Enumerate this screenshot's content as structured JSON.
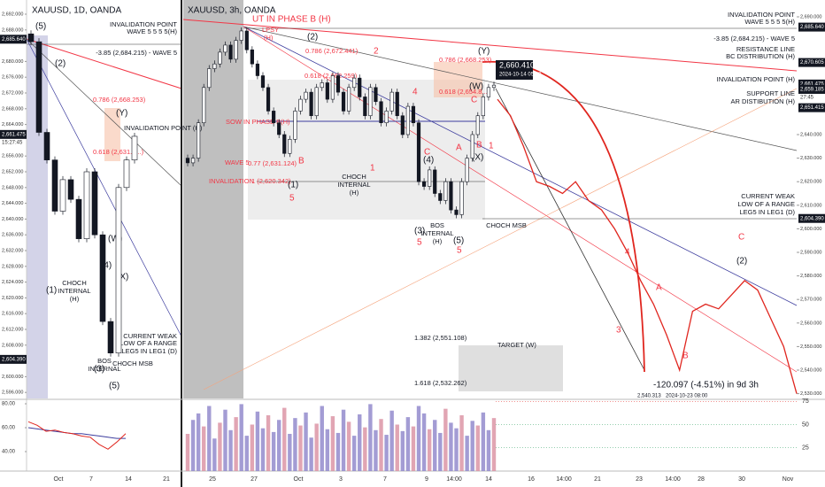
{
  "left": {
    "symbol": "XAUUSD, 1D, OANDA",
    "ticks": [
      {
        "value": 2692,
        "label": "2,692.000"
      },
      {
        "value": 2688,
        "label": "2,688.000"
      },
      {
        "value": 2680,
        "label": "2,680.000"
      },
      {
        "value": 2676,
        "label": "2,676.000"
      },
      {
        "value": 2672,
        "label": "2,672.000"
      },
      {
        "value": 2668,
        "label": "2,668.000"
      },
      {
        "value": 2664,
        "label": "2,664.000"
      },
      {
        "value": 2656,
        "label": "2,656.000"
      },
      {
        "value": 2652,
        "label": "2,652.000"
      },
      {
        "value": 2648,
        "label": "2,648.000"
      },
      {
        "value": 2644,
        "label": "2,644.000"
      },
      {
        "value": 2640,
        "label": "2,640.000"
      },
      {
        "value": 2636,
        "label": "2,636.000"
      },
      {
        "value": 2632,
        "label": "2,632.000"
      },
      {
        "value": 2628,
        "label": "2,628.000"
      },
      {
        "value": 2624,
        "label": "2,624.000"
      },
      {
        "value": 2620,
        "label": "2,620.000"
      },
      {
        "value": 2616,
        "label": "2,616.000"
      },
      {
        "value": 2612,
        "label": "2,612.000"
      },
      {
        "value": 2608,
        "label": "2,608.000"
      },
      {
        "value": 2600,
        "label": "2,600.000"
      },
      {
        "value": 2596,
        "label": "2,596.000"
      }
    ],
    "badges": [
      {
        "value": 2685.64,
        "label": "2,685.640"
      },
      {
        "value": 2661.475,
        "label": "2,661.475"
      },
      {
        "value": 2604.39,
        "label": "2,604.390"
      }
    ],
    "countdown": "15:27:45",
    "closes": [
      2685,
      2662,
      2655,
      2642,
      2650,
      2645,
      2635,
      2652,
      2636,
      2614,
      2606,
      2648,
      2655,
      2661
    ],
    "rsi_ticks": [
      {
        "value": 80,
        "label": "80.00"
      },
      {
        "value": 60,
        "label": "60.00"
      },
      {
        "value": 40,
        "label": "40.00"
      }
    ],
    "rsi": [
      65,
      62,
      57,
      58,
      56,
      55,
      53,
      52,
      46,
      42,
      48,
      55
    ],
    "rsi_ma": [
      60,
      59,
      58,
      57,
      56,
      55,
      55,
      54,
      53,
      52,
      51,
      51
    ],
    "time_labels": [
      "Oct",
      "7",
      "14",
      "21"
    ],
    "labels": [
      "(5)",
      "(2)",
      "0.786 (2,668.253)",
      "(Y)",
      "INVALIDATION POINT (H)",
      "0.618 (2,631.2...)",
      "INVALIDATION POINT",
      "WAVE 5 5 5 5(H)",
      "-3.85 (2,684.215) - WAVE 5",
      "(W)",
      "(4)",
      "(X)",
      "(1)",
      "CHOCH",
      "INTERNAL",
      "(H)",
      "CURRENT WEAK",
      "LOW OF A RANGE",
      "LEG5 IN LEG1 (D)",
      "BOS",
      "INTERNAL",
      "(3)",
      "CHOCH MSB",
      "(5)"
    ]
  },
  "right": {
    "symbol": "XAUUSD, 3h, OANDA",
    "ticks": [
      {
        "value": 2690,
        "label": "2,690.000"
      },
      {
        "value": 2640,
        "label": "2,640.000"
      },
      {
        "value": 2630,
        "label": "2,630.000"
      },
      {
        "value": 2620,
        "label": "2,620.000"
      },
      {
        "value": 2610,
        "label": "2,610.000"
      },
      {
        "value": 2600,
        "label": "2,600.000"
      },
      {
        "value": 2590,
        "label": "2,590.000"
      },
      {
        "value": 2580,
        "label": "2,580.000"
      },
      {
        "value": 2570,
        "label": "2,570.000"
      },
      {
        "value": 2560,
        "label": "2,560.000"
      },
      {
        "value": 2550,
        "label": "2,550.000"
      },
      {
        "value": 2540,
        "label": "2,540.000"
      },
      {
        "value": 2530,
        "label": "2,530.000"
      }
    ],
    "badges": [
      {
        "value": 2685.64,
        "label": "2,685.640"
      },
      {
        "value": 2670.605,
        "label": "2,670.605"
      },
      {
        "value": 2661.475,
        "label": "2,661.475"
      },
      {
        "value": 2659.185,
        "label": "2,659.185"
      },
      {
        "value": 2651.415,
        "label": "2,651.415"
      },
      {
        "value": 2604.39,
        "label": "2,604.390"
      }
    ],
    "countdown": "27:45",
    "closes": [
      2628,
      2630,
      2645,
      2660,
      2668,
      2670,
      2675,
      2678,
      2672,
      2680,
      2684,
      2676,
      2670,
      2665,
      2660,
      2650,
      2645,
      2640,
      2632,
      2638,
      2650,
      2655,
      2658,
      2648,
      2660,
      2662,
      2655,
      2665,
      2658,
      2650,
      2660,
      2664,
      2656,
      2648,
      2660,
      2654,
      2645,
      2650,
      2658,
      2648,
      2640,
      2652,
      2645,
      2620,
      2618,
      2625,
      2615,
      2612,
      2620,
      2608,
      2606,
      2620,
      2630,
      2640,
      2648,
      2656,
      2660,
      2661
    ],
    "projection": [
      2655,
      2648,
      2635,
      2620,
      2618,
      2615,
      2620,
      2612,
      2608,
      2600,
      2590,
      2578,
      2568,
      2555,
      2540,
      2565,
      2568,
      2566,
      2572,
      2578,
      2574,
      2562,
      2550,
      2530
    ],
    "vol_ticks": [
      75,
      50,
      25
    ],
    "volume": [
      40,
      55,
      62,
      48,
      70,
      35,
      52,
      66,
      44,
      58,
      72,
      38,
      50,
      64,
      46,
      60,
      42,
      55,
      68,
      40,
      57,
      49,
      63,
      36,
      51,
      70,
      45,
      59,
      41,
      66,
      53,
      38,
      61,
      47,
      72,
      44,
      56,
      39,
      65,
      50,
      43,
      58,
      48,
      70,
      62,
      45,
      55,
      41,
      67,
      52,
      46,
      60,
      38,
      54,
      49,
      63,
      44,
      57
    ],
    "time_labels": [
      "25",
      "27",
      "Oct",
      "3",
      "7",
      "9",
      "14:00",
      "14",
      "16",
      "14:00",
      "21",
      "23",
      "14:00",
      "28",
      "30",
      "Nov"
    ],
    "labels": [
      "UT IN PHASE B (H)",
      "LPSY",
      "(H)",
      "0.786 (2,672.441)",
      "2",
      "(2)",
      "0.618 (2,662.259)",
      "4",
      "SOW IN PHASE B(H)",
      "WAVE 5",
      "0.77 (2,631.124)",
      "INVALIDATION",
      "1 (2,620.342)",
      "(1)",
      "5",
      "B",
      "1",
      "CHOCH",
      "INTERNAL",
      "(H)",
      "BOS",
      "INTERNAL",
      "(H)",
      "(3)",
      "5",
      "(5)",
      "5",
      "CHOCH MSB",
      "C",
      "(4)",
      "A",
      "B",
      "(X)",
      "(W)",
      "C",
      "1",
      "(Y)",
      "2,660.410",
      "2024-10-14 05:00",
      "0.786 (2,668.253)",
      "0.618 (2,654.8...)",
      "INVALIDATION POINT",
      "WAVE 5 5 5 5(H)",
      "-3.85 (2,684.215) - WAVE 5",
      "RESISTANCE LINE",
      "BC DISTRIBUTION (H)",
      "INVALIDATION POINT (H)",
      "SUPPORT LINE",
      "AR DISTIBUTION (H)",
      "CURRENT WEAK",
      "LOW OF A RANGE",
      "LEG5 IN LEG1 (D)",
      "C",
      "(2)",
      "A",
      "B",
      "3",
      "4",
      "1.382 (2,551.108)",
      "TARGET (W)",
      "1.618 (2,532.262)",
      "-120.097 (-4.51%) in 9d 3h",
      "2,540.313",
      "2024-10-23 08:00"
    ]
  }
}
